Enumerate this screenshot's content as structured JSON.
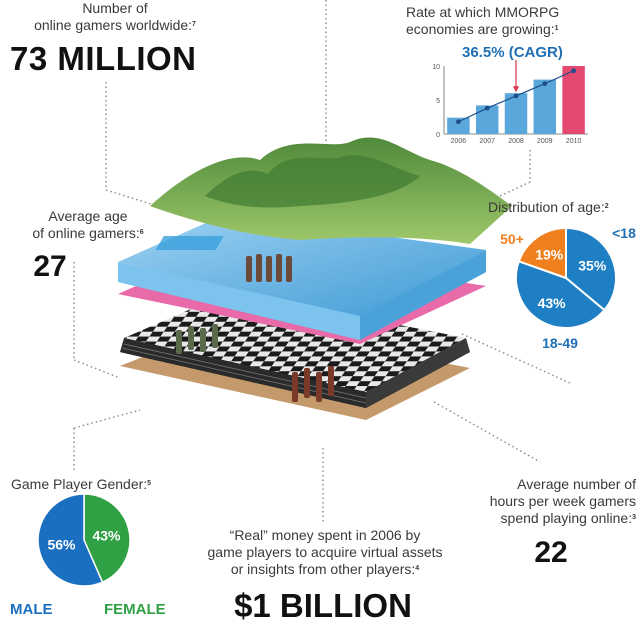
{
  "online_gamers": {
    "label_line1": "Number of",
    "label_line2": "online gamers worldwide:",
    "footnote": "7",
    "value": "73 MILLION"
  },
  "mmorpg": {
    "label_line1": "Rate at which MMORPG",
    "label_line2": "economies are growing:",
    "footnote": "1",
    "cagr": "36.5% (CAGR)"
  },
  "average_age": {
    "label_line1": "Average age",
    "label_line2": "of online gamers:",
    "footnote": "6",
    "value": "27"
  },
  "age_distribution": {
    "label": "Distribution of age:",
    "footnote": "2"
  },
  "gender": {
    "label": "Game Player Gender:",
    "footnote": "5"
  },
  "hours": {
    "label_line1": "Average number of",
    "label_line2": "hours per week gamers",
    "label_line3": "spend playing online:",
    "footnote": "3",
    "value": "22"
  },
  "real_money": {
    "label_line1": "“Real” money spent in 2006 by",
    "label_line2": "game players to acquire virtual assets",
    "label_line3": "or insights from other players:",
    "footnote": "4",
    "value": "$1 BILLION"
  },
  "colors": {
    "blue": "#1f7fc4",
    "dark_blue": "#1a5d9e",
    "orange": "#f07f1e",
    "green": "#2fa043",
    "pink": "#e44a6f",
    "bar_blue": "#5aa7dc"
  },
  "chart_data": [
    {
      "type": "bar",
      "categories": [
        "2006",
        "2007",
        "2008",
        "2009",
        "2010"
      ],
      "values": [
        2.4,
        4.2,
        6.0,
        8.0,
        10.0
      ],
      "trend": [
        1.8,
        3.8,
        5.6,
        7.4,
        9.3
      ],
      "ylim": [
        0,
        10
      ],
      "yticks": [
        "0",
        "5",
        "10"
      ],
      "highlight_category": "2010",
      "title": "36.5% (CAGR)"
    },
    {
      "type": "pie",
      "slices": [
        {
          "label": "<18",
          "value": 35,
          "text": "35%",
          "color": "#1f7fc4"
        },
        {
          "label": "18-49",
          "value": 43,
          "text": "43%",
          "color": "#1f7fc4"
        },
        {
          "label": "50+",
          "value": 19,
          "text": "19%",
          "color": "#f07f1e"
        }
      ]
    },
    {
      "type": "pie",
      "slices": [
        {
          "label": "MALE",
          "value": 56,
          "text": "56%",
          "color": "#1a6fc0"
        },
        {
          "label": "FEMALE",
          "value": 43,
          "text": "43%",
          "color": "#2fa043"
        }
      ]
    }
  ]
}
